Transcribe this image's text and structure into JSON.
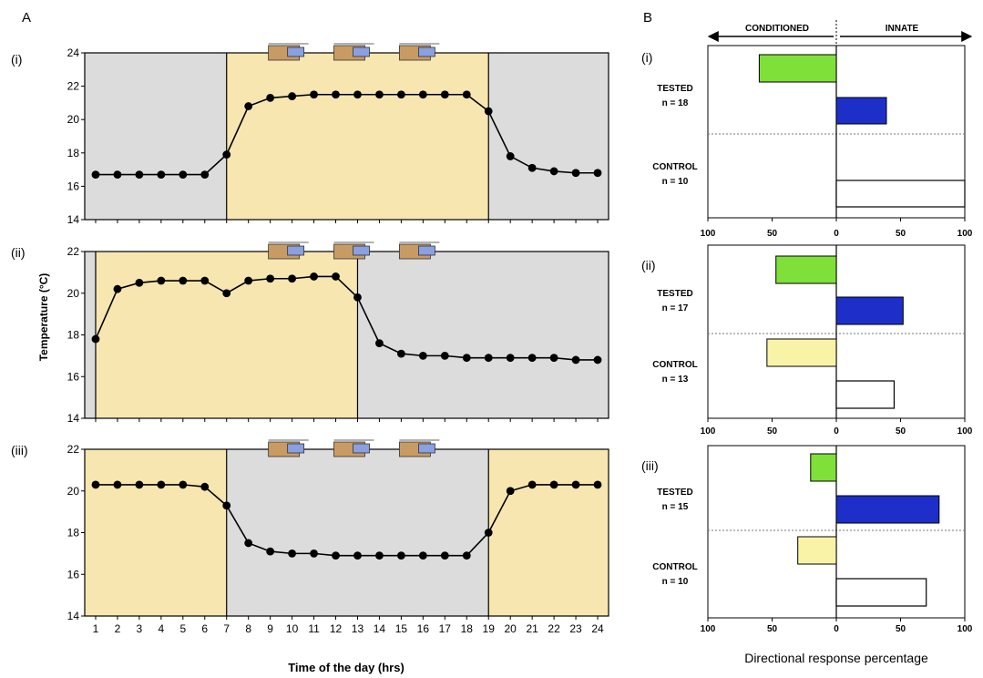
{
  "panel_letters": {
    "a": "A",
    "b": "B"
  },
  "panel_a": {
    "ylabel": "Temperature (°C)",
    "xlabel": "Time of the day (hrs)"
  },
  "panel_b": {
    "header_left": "CONDITIONED",
    "header_right": "INNATE",
    "xlabel": "Directional response percentage"
  },
  "colors": {
    "day_fill": "#f7e6b0",
    "night_fill": "#dcdcdc",
    "line": "#000000",
    "tested_conditioned": "#7fe03a",
    "tested_innate": "#1d2fc8",
    "control_conditioned": "#f9f3a8",
    "control_innate": "#ffffff"
  },
  "chart_data": [
    {
      "type": "line",
      "label": "(i)",
      "x": [
        1,
        2,
        3,
        4,
        5,
        6,
        7,
        8,
        9,
        10,
        11,
        12,
        13,
        14,
        15,
        16,
        17,
        18,
        19,
        20,
        21,
        22,
        23,
        24
      ],
      "y": [
        16.7,
        16.7,
        16.7,
        16.7,
        16.7,
        16.7,
        17.9,
        20.8,
        21.3,
        21.4,
        21.5,
        21.5,
        21.5,
        21.5,
        21.5,
        21.5,
        21.5,
        21.5,
        20.5,
        17.8,
        17.1,
        16.9,
        16.8,
        16.8
      ],
      "ylim": [
        14,
        24
      ],
      "yticks": [
        14,
        16,
        18,
        20,
        22,
        24
      ],
      "xlim": [
        0.5,
        24.5
      ],
      "xticks": [
        1,
        2,
        3,
        4,
        5,
        6,
        7,
        8,
        9,
        10,
        11,
        12,
        13,
        14,
        15,
        16,
        17,
        18,
        19,
        20,
        21,
        22,
        23,
        24
      ],
      "day_period": [
        7,
        19
      ],
      "night_periods": [
        [
          0.5,
          7
        ],
        [
          19,
          24.5
        ]
      ],
      "training_sessions": [
        9,
        12,
        15
      ]
    },
    {
      "type": "line",
      "label": "(ii)",
      "x": [
        1,
        2,
        3,
        4,
        5,
        6,
        7,
        8,
        9,
        10,
        11,
        12,
        13,
        14,
        15,
        16,
        17,
        18,
        19,
        20,
        21,
        22,
        23,
        24
      ],
      "y": [
        17.8,
        20.2,
        20.5,
        20.6,
        20.6,
        20.6,
        20.0,
        20.6,
        20.7,
        20.7,
        20.8,
        20.8,
        19.8,
        17.6,
        17.1,
        17.0,
        17.0,
        16.9,
        16.9,
        16.9,
        16.9,
        16.9,
        16.8,
        16.8
      ],
      "ylim": [
        14,
        22
      ],
      "yticks": [
        14,
        16,
        18,
        20,
        22
      ],
      "xlim": [
        0.5,
        24.5
      ],
      "xticks": [
        1,
        2,
        3,
        4,
        5,
        6,
        7,
        8,
        9,
        10,
        11,
        12,
        13,
        14,
        15,
        16,
        17,
        18,
        19,
        20,
        21,
        22,
        23,
        24
      ],
      "day_period": [
        1,
        13
      ],
      "night_periods": [
        [
          0.5,
          1
        ],
        [
          13,
          24.5
        ]
      ],
      "training_sessions": [
        9,
        12,
        15
      ]
    },
    {
      "type": "line",
      "label": "(iii)",
      "x": [
        1,
        2,
        3,
        4,
        5,
        6,
        7,
        8,
        9,
        10,
        11,
        12,
        13,
        14,
        15,
        16,
        17,
        18,
        19,
        20,
        21,
        22,
        23,
        24
      ],
      "y": [
        20.3,
        20.3,
        20.3,
        20.3,
        20.3,
        20.2,
        19.3,
        17.5,
        17.1,
        17.0,
        17.0,
        16.9,
        16.9,
        16.9,
        16.9,
        16.9,
        16.9,
        16.9,
        18.0,
        20.0,
        20.3,
        20.3,
        20.3,
        20.3
      ],
      "ylim": [
        14,
        22
      ],
      "yticks": [
        14,
        16,
        18,
        20,
        22
      ],
      "xlim": [
        0.5,
        24.5
      ],
      "xticks": [
        1,
        2,
        3,
        4,
        5,
        6,
        7,
        8,
        9,
        10,
        11,
        12,
        13,
        14,
        15,
        16,
        17,
        18,
        19,
        20,
        21,
        22,
        23,
        24
      ],
      "day_periods": [
        [
          0.5,
          7
        ],
        [
          19,
          24.5
        ]
      ],
      "night_period": [
        7,
        19
      ],
      "training_sessions": [
        9,
        12,
        15
      ]
    },
    {
      "type": "bar",
      "label": "(i)",
      "groups": [
        {
          "name": "TESTED",
          "n": "n = 18",
          "conditioned": 60,
          "innate": 39
        },
        {
          "name": "CONTROL",
          "n": "n = 10",
          "conditioned": 0,
          "innate": 100
        }
      ],
      "xlim": [
        -100,
        100
      ],
      "xtick_labels": [
        "100",
        "50",
        "0",
        "50",
        "100"
      ]
    },
    {
      "type": "bar",
      "label": "(ii)",
      "groups": [
        {
          "name": "TESTED",
          "n": "n = 17",
          "conditioned": 47,
          "innate": 52
        },
        {
          "name": "CONTROL",
          "n": "n = 13",
          "conditioned": 54,
          "innate": 45
        }
      ],
      "xlim": [
        -100,
        100
      ],
      "xtick_labels": [
        "100",
        "50",
        "0",
        "50",
        "100"
      ]
    },
    {
      "type": "bar",
      "label": "(iii)",
      "groups": [
        {
          "name": "TESTED",
          "n": "n = 15",
          "conditioned": 20,
          "innate": 80
        },
        {
          "name": "CONTROL",
          "n": "n = 10",
          "conditioned": 30,
          "innate": 70
        }
      ],
      "xlim": [
        -100,
        100
      ],
      "xtick_labels": [
        "100",
        "50",
        "0",
        "50",
        "100"
      ]
    }
  ]
}
